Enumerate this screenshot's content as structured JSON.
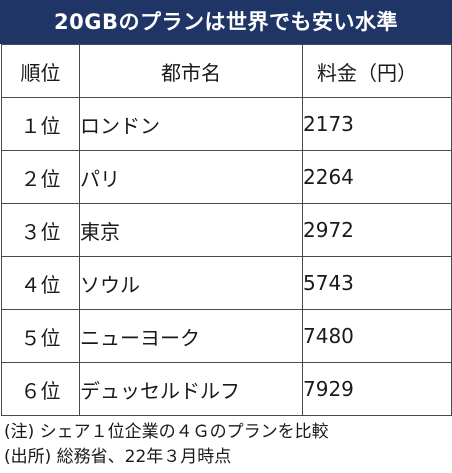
{
  "title": "20GBのプランは世界でも安い水準",
  "table": {
    "headers": [
      "順位",
      "都市名",
      "料金（円）"
    ],
    "rows": [
      {
        "rank": "１位",
        "city": "ロンドン",
        "fee": "2173"
      },
      {
        "rank": "２位",
        "city": "パリ",
        "fee": "2264"
      },
      {
        "rank": "３位",
        "city": "東京",
        "fee": "2972"
      },
      {
        "rank": "４位",
        "city": "ソウル",
        "fee": "5743"
      },
      {
        "rank": "５位",
        "city": "ニューヨーク",
        "fee": "7480"
      },
      {
        "rank": "６位",
        "city": "デュッセルドルフ",
        "fee": "7929"
      }
    ]
  },
  "notes": {
    "note": "(注) シェア１位企業の４Ｇのプランを比較",
    "source": "(出所) 総務省、22年３月時点"
  },
  "colors": {
    "title_background": "#1e3566",
    "title_text": "#ffffff",
    "grid": "#4a4a4a"
  }
}
